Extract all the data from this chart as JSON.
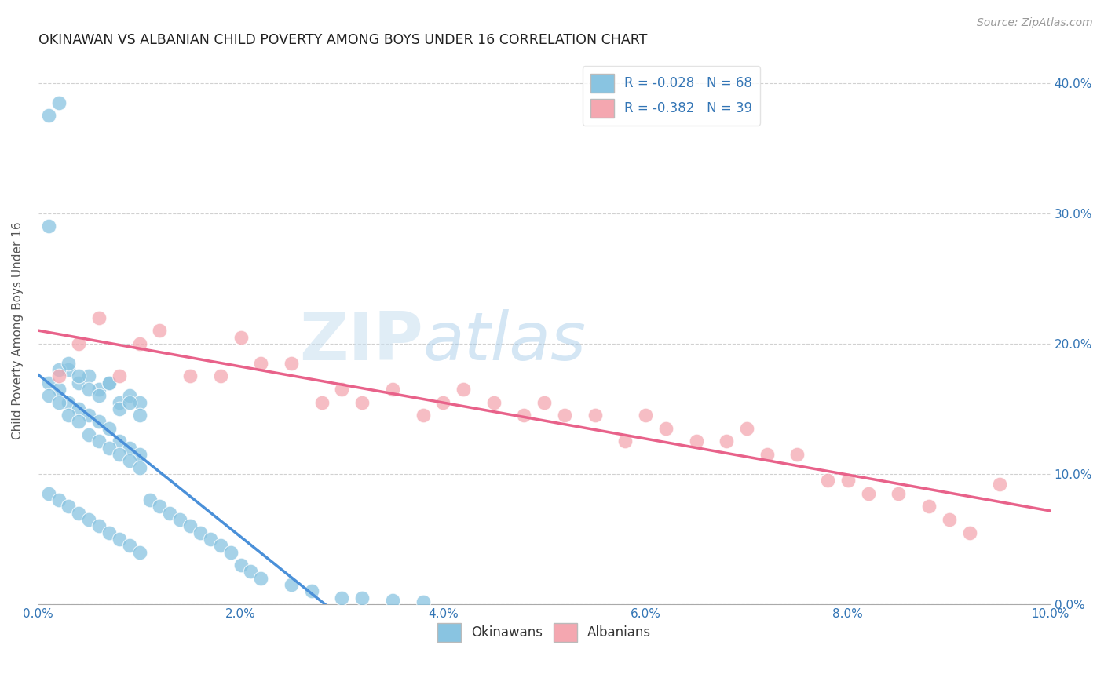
{
  "title": "OKINAWAN VS ALBANIAN CHILD POVERTY AMONG BOYS UNDER 16 CORRELATION CHART",
  "source": "Source: ZipAtlas.com",
  "ylabel": "Child Poverty Among Boys Under 16",
  "watermark": "ZIPatlas",
  "xlim": [
    0.0,
    0.1
  ],
  "ylim": [
    0.0,
    0.42
  ],
  "xtick_vals": [
    0.0,
    0.02,
    0.04,
    0.06,
    0.08,
    0.1
  ],
  "ytick_vals": [
    0.0,
    0.1,
    0.2,
    0.3,
    0.4
  ],
  "okinawan_R": -0.028,
  "okinawan_N": 68,
  "albanian_R": -0.382,
  "albanian_N": 39,
  "okinawan_color": "#89c4e1",
  "albanian_color": "#f4a7b0",
  "okinawan_line_color": "#4a90d9",
  "albanian_line_color": "#e8628a",
  "dashed_line_color": "#90bedd",
  "background_color": "#ffffff",
  "ok_x": [
    0.001,
    0.002,
    0.003,
    0.004,
    0.005,
    0.006,
    0.007,
    0.008,
    0.009,
    0.01,
    0.001,
    0.002,
    0.003,
    0.004,
    0.005,
    0.006,
    0.007,
    0.008,
    0.009,
    0.01,
    0.001,
    0.002,
    0.003,
    0.004,
    0.005,
    0.006,
    0.007,
    0.008,
    0.009,
    0.01,
    0.001,
    0.002,
    0.003,
    0.004,
    0.005,
    0.006,
    0.007,
    0.008,
    0.009,
    0.01,
    0.001,
    0.002,
    0.003,
    0.004,
    0.005,
    0.006,
    0.007,
    0.008,
    0.009,
    0.01,
    0.011,
    0.012,
    0.013,
    0.014,
    0.015,
    0.016,
    0.017,
    0.018,
    0.019,
    0.02,
    0.021,
    0.022,
    0.025,
    0.027,
    0.03,
    0.032,
    0.035,
    0.038
  ],
  "ok_y": [
    0.375,
    0.385,
    0.18,
    0.17,
    0.175,
    0.165,
    0.17,
    0.155,
    0.16,
    0.155,
    0.29,
    0.18,
    0.185,
    0.175,
    0.165,
    0.16,
    0.17,
    0.15,
    0.155,
    0.145,
    0.17,
    0.165,
    0.155,
    0.15,
    0.145,
    0.14,
    0.135,
    0.125,
    0.12,
    0.115,
    0.16,
    0.155,
    0.145,
    0.14,
    0.13,
    0.125,
    0.12,
    0.115,
    0.11,
    0.105,
    0.085,
    0.08,
    0.075,
    0.07,
    0.065,
    0.06,
    0.055,
    0.05,
    0.045,
    0.04,
    0.08,
    0.075,
    0.07,
    0.065,
    0.06,
    0.055,
    0.05,
    0.045,
    0.04,
    0.03,
    0.025,
    0.02,
    0.015,
    0.01,
    0.005,
    0.005,
    0.003,
    0.002
  ],
  "al_x": [
    0.002,
    0.004,
    0.006,
    0.008,
    0.01,
    0.012,
    0.015,
    0.018,
    0.02,
    0.022,
    0.025,
    0.028,
    0.03,
    0.032,
    0.035,
    0.038,
    0.04,
    0.042,
    0.045,
    0.048,
    0.05,
    0.052,
    0.055,
    0.058,
    0.06,
    0.062,
    0.065,
    0.068,
    0.07,
    0.072,
    0.075,
    0.078,
    0.08,
    0.082,
    0.085,
    0.088,
    0.09,
    0.092,
    0.095
  ],
  "al_y": [
    0.175,
    0.2,
    0.22,
    0.175,
    0.2,
    0.21,
    0.175,
    0.175,
    0.205,
    0.185,
    0.185,
    0.155,
    0.165,
    0.155,
    0.165,
    0.145,
    0.155,
    0.165,
    0.155,
    0.145,
    0.155,
    0.145,
    0.145,
    0.125,
    0.145,
    0.135,
    0.125,
    0.125,
    0.135,
    0.115,
    0.115,
    0.095,
    0.095,
    0.085,
    0.085,
    0.075,
    0.065,
    0.055,
    0.092
  ]
}
